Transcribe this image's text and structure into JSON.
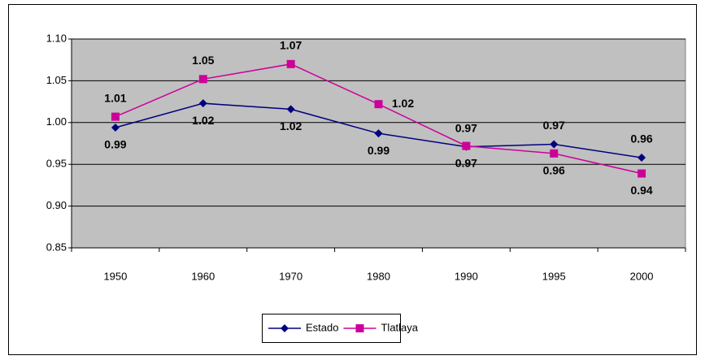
{
  "chart_data": {
    "type": "line",
    "categories": [
      "1950",
      "1960",
      "1970",
      "1980",
      "1990",
      "1995",
      "2000"
    ],
    "series": [
      {
        "name": "Estado",
        "color": "#000080",
        "marker": "diamond",
        "values": [
          0.994,
          1.023,
          1.016,
          0.987,
          0.971,
          0.974,
          0.958
        ],
        "value_labels": [
          "0.99",
          "1.02",
          "1.02",
          "0.99",
          "0.97",
          "0.97",
          "0.96"
        ]
      },
      {
        "name": "Tlatlaya",
        "color": "#CC0099",
        "marker": "square",
        "values": [
          1.007,
          1.052,
          1.07,
          1.022,
          0.972,
          0.963,
          0.939
        ],
        "value_labels": [
          "1.01",
          "1.05",
          "1.07",
          "1.02",
          "0.97",
          "0.96",
          "0.94"
        ]
      }
    ],
    "ylim": [
      0.85,
      1.1
    ],
    "yticks": [
      {
        "value": 0.9,
        "label": "0.90"
      },
      0.85,
      0.95,
      {
        "value": 1.0,
        "label": "1.00"
      },
      1.05,
      {
        "value": 1.1,
        "label": "1.10"
      }
    ],
    "grid": true,
    "legend": "bottom",
    "plot_background": "#C0C0C0"
  }
}
